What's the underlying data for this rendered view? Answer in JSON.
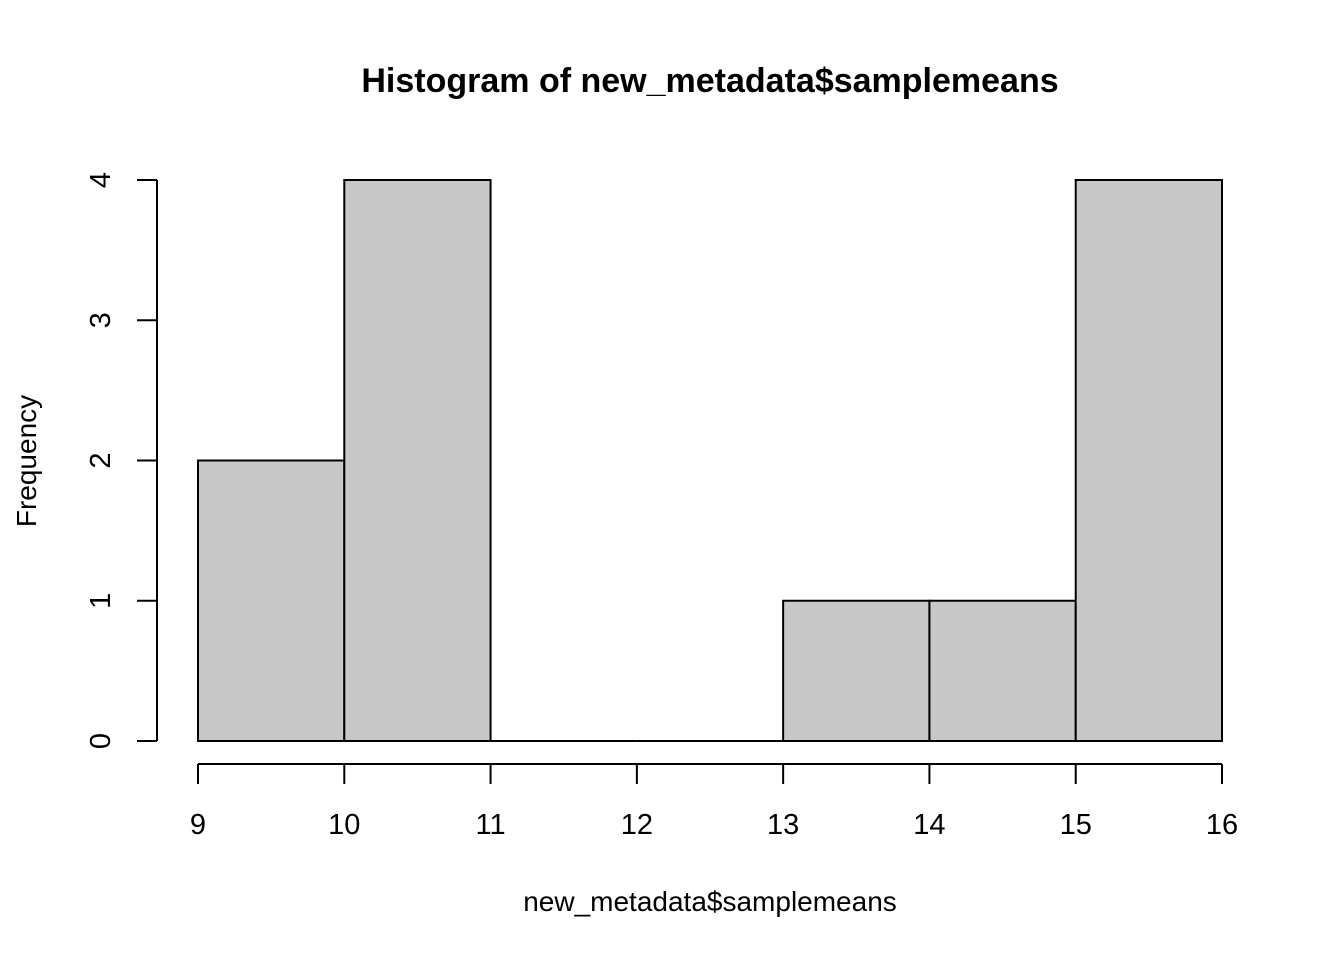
{
  "chart_data": {
    "type": "bar",
    "histogram": true,
    "title": "Histogram of new_metadata$samplemeans",
    "xlabel": "new_metadata$samplemeans",
    "ylabel": "Frequency",
    "bins": [
      {
        "start": 9,
        "end": 10,
        "count": 2
      },
      {
        "start": 10,
        "end": 11,
        "count": 4
      },
      {
        "start": 11,
        "end": 12,
        "count": 0
      },
      {
        "start": 12,
        "end": 13,
        "count": 0
      },
      {
        "start": 13,
        "end": 14,
        "count": 1
      },
      {
        "start": 14,
        "end": 15,
        "count": 1
      },
      {
        "start": 15,
        "end": 16,
        "count": 4
      }
    ],
    "xlim": [
      9,
      16
    ],
    "ylim": [
      0,
      4
    ],
    "xticks": [
      "9",
      "10",
      "11",
      "12",
      "13",
      "14",
      "15",
      "16"
    ],
    "yticks": [
      "0",
      "1",
      "2",
      "3",
      "4"
    ],
    "grid": false,
    "colors": {
      "bar_fill": "#c8c8c8",
      "bar_edge": "#000000",
      "axis": "#000000",
      "background": "#ffffff"
    }
  }
}
